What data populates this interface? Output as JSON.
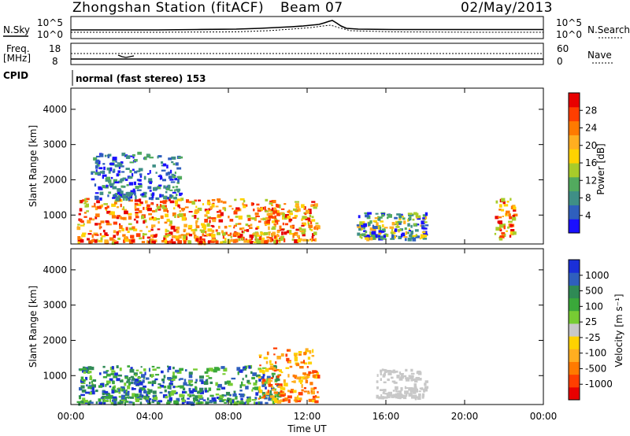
{
  "header": {
    "station": "Zhongshan Station (fitACF)",
    "beam": "Beam 07",
    "date": "02/May/2013"
  },
  "top_panels": {
    "nsky_label": "N.Sky",
    "nsky_ticks": [
      "10^5",
      "10^0"
    ],
    "nsearch_label": "N.Search",
    "nsearch_ticks": [
      "10^5",
      "10^0"
    ],
    "freq_label": "Freq.",
    "freq_unit": "[MHz]",
    "freq_ticks": [
      "18",
      "8"
    ],
    "nave_label": "Nave",
    "nave_ticks": [
      "60",
      "0"
    ],
    "cpid_label": "CPID",
    "cpid_text": "normal (fast stereo) 153"
  },
  "axes": {
    "ylabel": "Slant Range [km]",
    "yticks": [
      "1000",
      "2000",
      "3000",
      "4000"
    ],
    "xticks": [
      "00:00",
      "04:00",
      "08:00",
      "12:00",
      "16:00",
      "20:00",
      "00:00"
    ],
    "xlabel": "Time UT"
  },
  "chart_data": [
    {
      "type": "heatmap",
      "title": "Power [dB]",
      "xlabel": "Time UT",
      "ylabel": "Slant Range [km]",
      "x_range_hours": [
        0,
        24
      ],
      "ylim": [
        180,
        4600
      ],
      "colorbar": {
        "label": "Power [dB]",
        "range": [
          0,
          32
        ],
        "ticks": [
          "4",
          "8",
          "12",
          "16",
          "20",
          "24",
          "28"
        ],
        "colors": [
          "#1a10ff",
          "#2f5fbd",
          "#3f8f86",
          "#52aa5e",
          "#a8cc2a",
          "#ffd200",
          "#ffae20",
          "#ff7a00",
          "#ff3e00",
          "#e80000"
        ]
      },
      "echo_regions": [
        {
          "t_start": 0.3,
          "t_end": 10.5,
          "range_min": 250,
          "range_max": 1500,
          "level": "high (20-32 dB)"
        },
        {
          "t_start": 1.0,
          "t_end": 5.5,
          "range_min": 1500,
          "range_max": 2800,
          "level": "low (4-12 dB)"
        },
        {
          "t_start": 10.0,
          "t_end": 12.5,
          "range_min": 300,
          "range_max": 1400,
          "level": "high (16-28 dB)"
        },
        {
          "t_start": 14.5,
          "t_end": 18.0,
          "range_min": 350,
          "range_max": 1100,
          "level": "mixed (4-20 dB)"
        },
        {
          "t_start": 21.5,
          "t_end": 22.5,
          "range_min": 350,
          "range_max": 1500,
          "level": "high (20-28 dB)"
        }
      ]
    },
    {
      "type": "heatmap",
      "title": "Velocity [m s-1]",
      "xlabel": "Time UT",
      "ylabel": "Slant Range [km]",
      "x_range_hours": [
        0,
        24
      ],
      "ylim": [
        180,
        4600
      ],
      "colorbar": {
        "label": "Velocity [m s⁻¹]",
        "ticks": [
          "1000",
          "500",
          "100",
          "25",
          "-25",
          "-100",
          "-500",
          "-1000"
        ],
        "colors": [
          "#1a2fd8",
          "#2f5fbd",
          "#2f8a55",
          "#3aa83a",
          "#77cc33",
          "#c8c8c8",
          "#ffd200",
          "#ffae20",
          "#ff7a00",
          "#ff3e00",
          "#e80000"
        ]
      },
      "echo_regions": [
        {
          "t_start": 0.3,
          "t_end": 10.5,
          "range_min": 250,
          "range_max": 1300,
          "level": "positive (100-1000 m/s)"
        },
        {
          "t_start": 9.5,
          "t_end": 12.5,
          "range_min": 300,
          "range_max": 1800,
          "level": "negative (-100 to -500 m/s)"
        },
        {
          "t_start": 15.5,
          "t_end": 18.0,
          "range_min": 400,
          "range_max": 1200,
          "level": "near zero (-25 to 25 m/s)"
        }
      ]
    }
  ]
}
